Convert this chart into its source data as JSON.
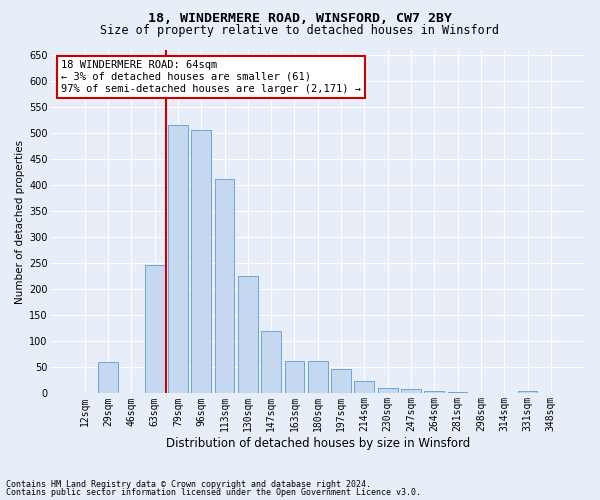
{
  "title1": "18, WINDERMERE ROAD, WINSFORD, CW7 2BY",
  "title2": "Size of property relative to detached houses in Winsford",
  "xlabel": "Distribution of detached houses by size in Winsford",
  "ylabel": "Number of detached properties",
  "categories": [
    "12sqm",
    "29sqm",
    "46sqm",
    "63sqm",
    "79sqm",
    "96sqm",
    "113sqm",
    "130sqm",
    "147sqm",
    "163sqm",
    "180sqm",
    "197sqm",
    "214sqm",
    "230sqm",
    "247sqm",
    "264sqm",
    "281sqm",
    "298sqm",
    "314sqm",
    "331sqm",
    "348sqm"
  ],
  "values": [
    0,
    60,
    0,
    247,
    515,
    507,
    412,
    225,
    120,
    62,
    62,
    47,
    23,
    10,
    8,
    5,
    3,
    0,
    0,
    5,
    0
  ],
  "bar_color": "#c5d8f0",
  "bar_edge_color": "#5b9bd5",
  "highlight_bar_index": 3,
  "vline_color": "#cc0000",
  "vline_index": 3,
  "annotation_text": "18 WINDERMERE ROAD: 64sqm\n← 3% of detached houses are smaller (61)\n97% of semi-detached houses are larger (2,171) →",
  "annotation_box_facecolor": "#ffffff",
  "annotation_box_edgecolor": "#cc0000",
  "ylim": [
    0,
    660
  ],
  "yticks": [
    0,
    50,
    100,
    150,
    200,
    250,
    300,
    350,
    400,
    450,
    500,
    550,
    600,
    650
  ],
  "footnote1": "Contains HM Land Registry data © Crown copyright and database right 2024.",
  "footnote2": "Contains public sector information licensed under the Open Government Licence v3.0.",
  "bg_color": "#e8eef8",
  "plot_bg_color": "#e8eef8",
  "title1_fontsize": 9.5,
  "title2_fontsize": 8.5,
  "ylabel_fontsize": 7.5,
  "xlabel_fontsize": 8.5,
  "tick_fontsize": 7,
  "annotation_fontsize": 7.5,
  "footnote_fontsize": 6
}
